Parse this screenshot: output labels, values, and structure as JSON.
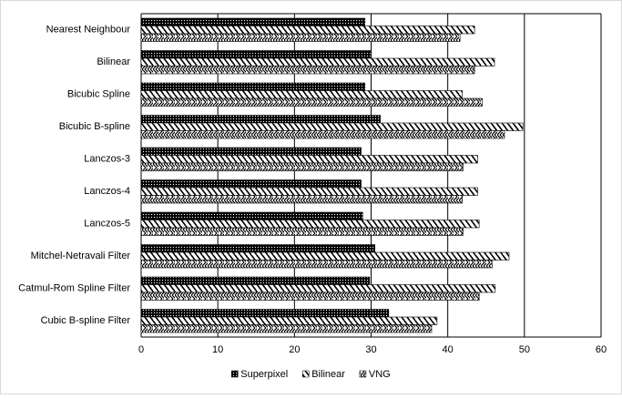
{
  "chart_data": {
    "type": "hbar",
    "categories": [
      "Nearest Neighbour",
      "Bilinear",
      "Bicubic Spline",
      "Bicubic B-spline",
      "Lanczos-3",
      "Lanczos-4",
      "Lanczos-5",
      "Mitchel-Netravali Filter",
      "Catmul-Rom Spline Filter",
      "Cubic B-spline Filter"
    ],
    "series": [
      {
        "name": "Superpixel",
        "color": "#000000",
        "values": [
          29.2,
          30.0,
          29.2,
          31.2,
          28.7,
          28.7,
          28.9,
          30.5,
          29.8,
          32.3
        ]
      },
      {
        "name": "Bilinear",
        "color": "#000000",
        "values": [
          43.5,
          46.1,
          41.9,
          49.8,
          43.9,
          43.9,
          44.1,
          48.0,
          46.2,
          38.6
        ]
      },
      {
        "name": "VNG",
        "color": "#000000",
        "values": [
          41.6,
          43.5,
          44.5,
          47.4,
          42.0,
          41.9,
          42.0,
          45.8,
          44.1,
          37.9
        ]
      }
    ],
    "xlim": [
      0,
      60
    ],
    "xticks": [
      0,
      10,
      20,
      30,
      40,
      50,
      60
    ],
    "grid": true,
    "legend": "bottom"
  }
}
